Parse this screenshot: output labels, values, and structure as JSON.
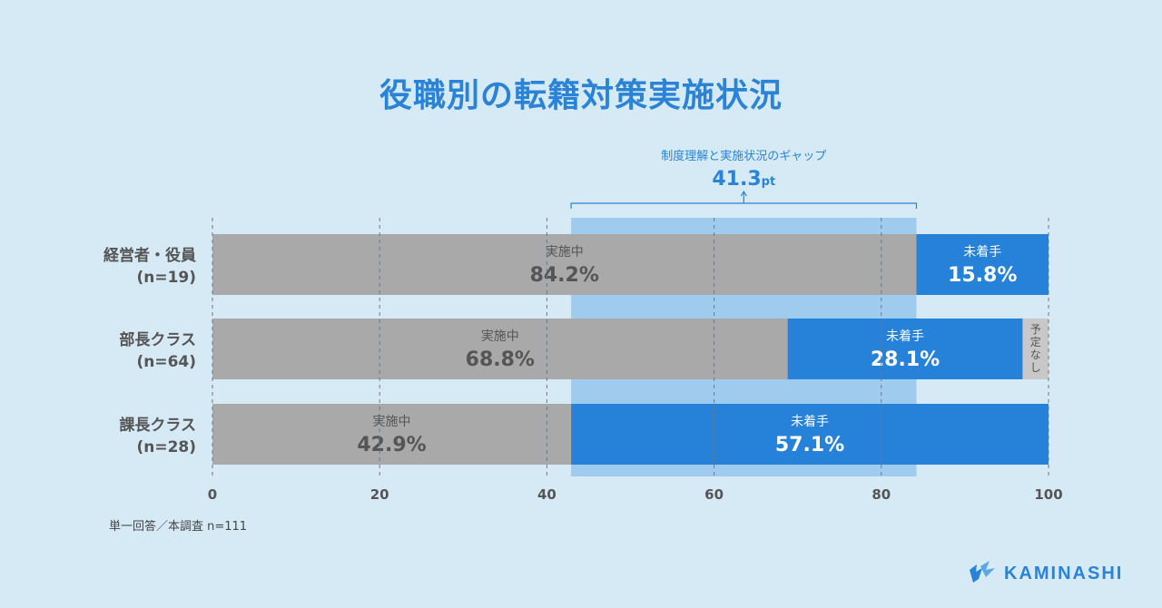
{
  "title": "役職別の転籍対策実施状況",
  "note": "単一回答／本調査 n=111",
  "logo_text": "KAMINASHI",
  "colors": {
    "background": "#d6eaf6",
    "implemented": "#a9a9a9",
    "not_started": "#2681d9",
    "no_plan": "#c8c8c8",
    "gap_band": "#9fcbee",
    "accent": "#2a83d6"
  },
  "chart_data": {
    "type": "bar",
    "orientation": "horizontal",
    "stacked": true,
    "categories": [
      {
        "name": "経営者・役員",
        "n": "(n=19)"
      },
      {
        "name": "部長クラス",
        "n": "(n=64)"
      },
      {
        "name": "課長クラス",
        "n": "(n=28)"
      }
    ],
    "series": [
      {
        "name": "実施中",
        "values": [
          84.2,
          68.8,
          42.9
        ],
        "labels": [
          "84.2%",
          "68.8%",
          "42.9%"
        ],
        "color": "#a9a9a9"
      },
      {
        "name": "未着手",
        "values": [
          15.8,
          28.1,
          57.1
        ],
        "labels": [
          "15.8%",
          "28.1%",
          "57.1%"
        ],
        "color": "#2681d9"
      },
      {
        "name": "予定なし",
        "values": [
          0,
          3.1,
          0
        ],
        "labels": [
          "",
          "予定なし",
          ""
        ],
        "color": "#c8c8c8"
      }
    ],
    "xlim": [
      0,
      100
    ],
    "xticks": [
      "0",
      "20",
      "40",
      "60",
      "80",
      "100"
    ],
    "grid": true,
    "annotation": {
      "label": "制度理解と実施状況のギャップ",
      "value": "41.3",
      "unit": "pt",
      "range": [
        42.9,
        84.2
      ]
    }
  }
}
